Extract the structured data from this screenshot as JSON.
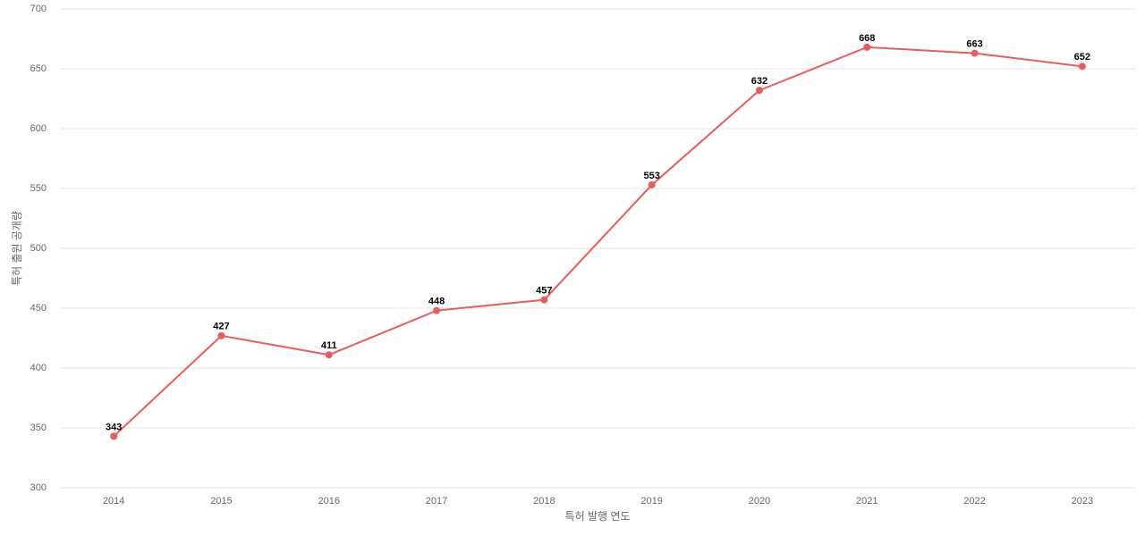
{
  "chart_data": {
    "type": "line",
    "x_label": "특허 발행 연도",
    "y_label": "특허 출원 공개량",
    "categories": [
      "2014",
      "2015",
      "2016",
      "2017",
      "2018",
      "2019",
      "2020",
      "2021",
      "2022",
      "2023"
    ],
    "values": [
      343,
      427,
      411,
      448,
      457,
      553,
      632,
      668,
      663,
      652
    ],
    "color": "#e85c5c",
    "ylim": [
      300,
      700
    ],
    "yticks": [
      300,
      350,
      400,
      450,
      500,
      550,
      600,
      650,
      700
    ],
    "grid": true
  }
}
